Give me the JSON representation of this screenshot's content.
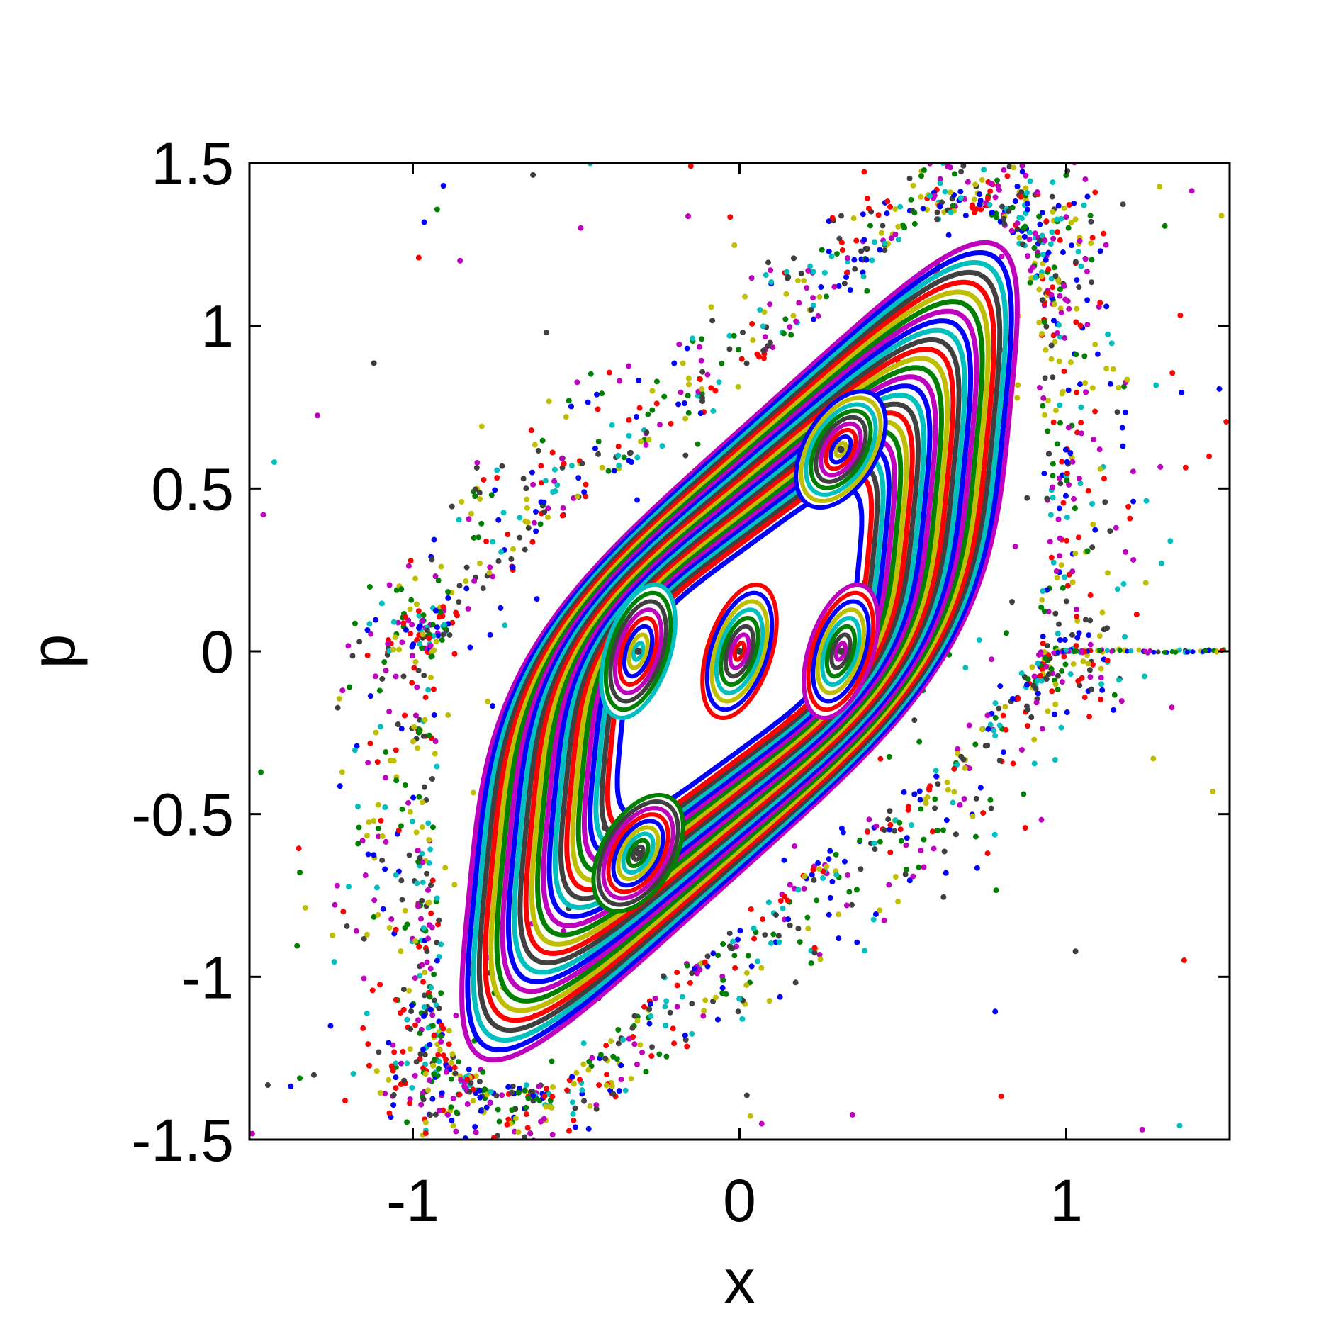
{
  "chart_data": {
    "type": "scatter",
    "title": "",
    "xlabel": "x",
    "ylabel": "p",
    "xlim": [
      -1.5,
      1.5
    ],
    "ylim": [
      -1.5,
      1.5
    ],
    "xticks": [
      -1,
      0,
      1
    ],
    "xtick_labels": [
      "-1",
      "0",
      "1"
    ],
    "yticks": [
      -1.5,
      -1,
      -0.5,
      0,
      0.5,
      1,
      1.5
    ],
    "ytick_labels": [
      "-1.5",
      "-1",
      "-0.5",
      "0",
      "0.5",
      "1",
      "1.5"
    ],
    "grid": false,
    "legend": "none",
    "colors": [
      "#0000ff",
      "#008000",
      "#ff0000",
      "#00bfbf",
      "#bf00bf",
      "#bfbf00",
      "#404040"
    ],
    "fixed_points": [
      {
        "x": 0.0,
        "p": 0.0
      },
      {
        "x": -0.31,
        "p": 0.0
      },
      {
        "x": 0.31,
        "p": 0.0
      },
      {
        "x": 0.31,
        "p": 0.62
      },
      {
        "x": -0.31,
        "p": -0.62
      }
    ],
    "outer_boundary": [
      [
        0.92,
        0.0
      ],
      [
        0.93,
        0.5
      ],
      [
        0.92,
        1.0
      ],
      [
        0.88,
        1.22
      ],
      [
        0.75,
        1.34
      ],
      [
        0.55,
        1.32
      ],
      [
        0.2,
        1.0
      ],
      [
        -0.2,
        0.66
      ],
      [
        -0.55,
        0.4
      ],
      [
        -0.85,
        0.1
      ],
      [
        -0.92,
        0.0
      ],
      [
        -0.93,
        -0.5
      ],
      [
        -0.92,
        -1.0
      ],
      [
        -0.88,
        -1.22
      ],
      [
        -0.75,
        -1.34
      ],
      [
        -0.55,
        -1.32
      ],
      [
        -0.2,
        -1.0
      ],
      [
        0.2,
        -0.66
      ],
      [
        0.55,
        -0.4
      ],
      [
        0.85,
        -0.1
      ]
    ],
    "scatter_seed": 7
  }
}
